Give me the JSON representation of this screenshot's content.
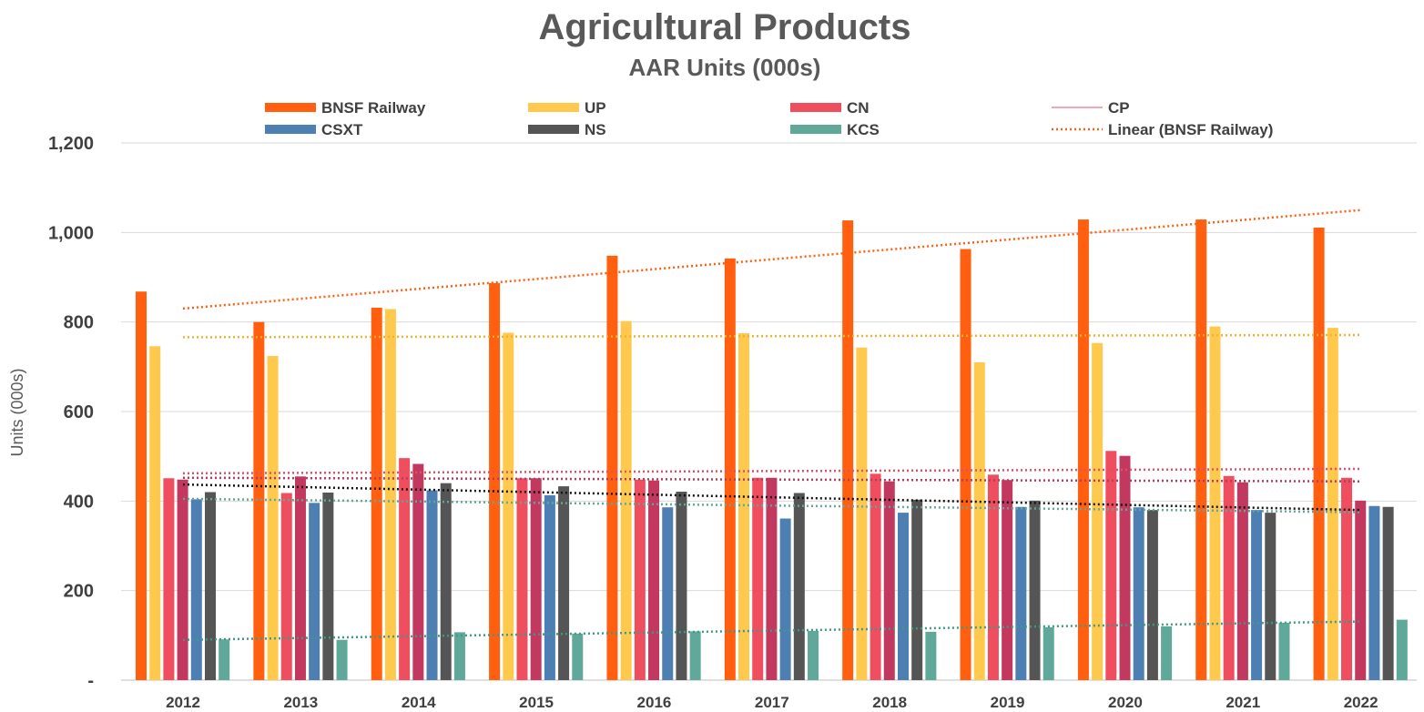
{
  "chart_data": {
    "type": "bar",
    "title": "Agricultural Products",
    "subtitle": "AAR Units (000s)",
    "ylabel": "Units (000s)",
    "xlabel": "",
    "ylim": [
      0,
      1200
    ],
    "y_ticks": [
      {
        "value": 0,
        "label": "-"
      },
      {
        "value": 200,
        "label": "200"
      },
      {
        "value": 400,
        "label": "400"
      },
      {
        "value": 600,
        "label": "600"
      },
      {
        "value": 800,
        "label": "800"
      },
      {
        "value": 1000,
        "label": "1,000"
      },
      {
        "value": 1200,
        "label": "1,200"
      }
    ],
    "grid": true,
    "legend_position": "top",
    "categories": [
      "2012",
      "2013",
      "2014",
      "2015",
      "2016",
      "2017",
      "2018",
      "2019",
      "2020",
      "2021",
      "2022"
    ],
    "series": [
      {
        "name": "BNSF Railway",
        "color": "#FF5F0F",
        "values": [
          868,
          800,
          832,
          887,
          948,
          942,
          1027,
          963,
          1029,
          1029,
          1011
        ]
      },
      {
        "name": "UP",
        "color": "#FFC94E",
        "values": [
          746,
          724,
          829,
          776,
          802,
          775,
          743,
          710,
          753,
          790,
          787
        ]
      },
      {
        "name": "CN",
        "color": "#EF4E5F",
        "values": [
          451,
          418,
          496,
          451,
          448,
          452,
          461,
          459,
          512,
          456,
          452
        ]
      },
      {
        "name": "CP",
        "color": "#C2385E",
        "values": [
          448,
          455,
          483,
          451,
          446,
          452,
          444,
          447,
          501,
          442,
          401
        ]
      },
      {
        "name": "CSXT",
        "color": "#4E7FB3",
        "values": [
          404,
          396,
          424,
          413,
          386,
          361,
          374,
          387,
          386,
          380,
          389
        ]
      },
      {
        "name": "NS",
        "color": "#555555",
        "values": [
          420,
          419,
          440,
          433,
          421,
          418,
          403,
          401,
          380,
          374,
          387
        ]
      },
      {
        "name": "KCS",
        "color": "#5FA89A",
        "values": [
          91,
          90,
          107,
          104,
          109,
          110,
          108,
          118,
          120,
          128,
          135
        ]
      }
    ],
    "trendlines": [
      {
        "series": "BNSF Railway",
        "label": "Linear (BNSF Railway)",
        "color": "#FF5F0F",
        "start": 830,
        "end": 1050
      },
      {
        "series": "UP",
        "color": "#F2B12E",
        "start": 766,
        "end": 771
      },
      {
        "series": "CN",
        "color": "#E0506A",
        "start": 462,
        "end": 472
      },
      {
        "series": "CP",
        "color": "#B83A5E",
        "start": 452,
        "end": 444
      },
      {
        "series": "NS",
        "color": "#111111",
        "start": 437,
        "end": 380
      },
      {
        "series": "CSXT",
        "color": "#5FA89A",
        "start": 405,
        "end": 375
      },
      {
        "series": "KCS",
        "color": "#3F9985",
        "start": 90,
        "end": 131
      }
    ],
    "legend": [
      {
        "label": "BNSF Railway",
        "color": "#FF5F0F",
        "kind": "bar"
      },
      {
        "label": "UP",
        "color": "#FFC94E",
        "kind": "bar"
      },
      {
        "label": "CN",
        "color": "#EF4E5F",
        "kind": "bar"
      },
      {
        "label": "CP",
        "color": "#E0506A",
        "kind": "line"
      },
      {
        "label": "CSXT",
        "color": "#4E7FB3",
        "kind": "bar"
      },
      {
        "label": "NS",
        "color": "#555555",
        "kind": "bar"
      },
      {
        "label": "KCS",
        "color": "#5FA89A",
        "kind": "bar"
      },
      {
        "label": "Linear (BNSF Railway)",
        "color": "#FF5F0F",
        "kind": "dotted"
      }
    ]
  }
}
